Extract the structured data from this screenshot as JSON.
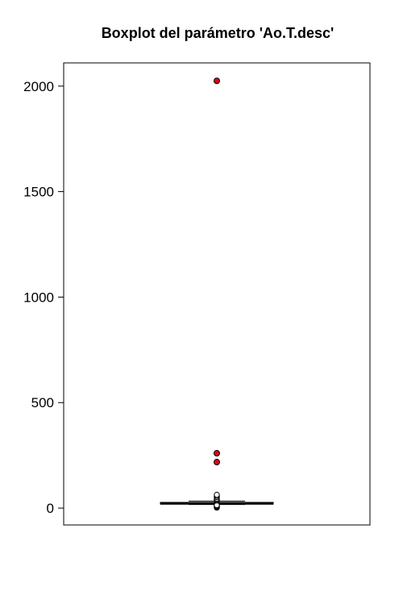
{
  "chart_data": {
    "type": "boxplot",
    "title": "Boxplot del parámetro 'Ao.T.desc'",
    "xlabel": "",
    "ylabel": "",
    "ylim": [
      -80,
      2110
    ],
    "yticks": [
      0,
      500,
      1000,
      1500,
      2000
    ],
    "grid": false,
    "box": {
      "whisker_low": 17,
      "q1": 19,
      "median": 22,
      "q3": 27,
      "whisker_high": 33
    },
    "outliers_regular": [
      2,
      6,
      9,
      12,
      14,
      36,
      40,
      45,
      52,
      58,
      63
    ],
    "outliers_highlighted": [
      218,
      260,
      2025
    ],
    "colors": {
      "highlight_fill": "#e3001b",
      "outline": "#000000",
      "regular_fill": "#ffffff"
    }
  }
}
